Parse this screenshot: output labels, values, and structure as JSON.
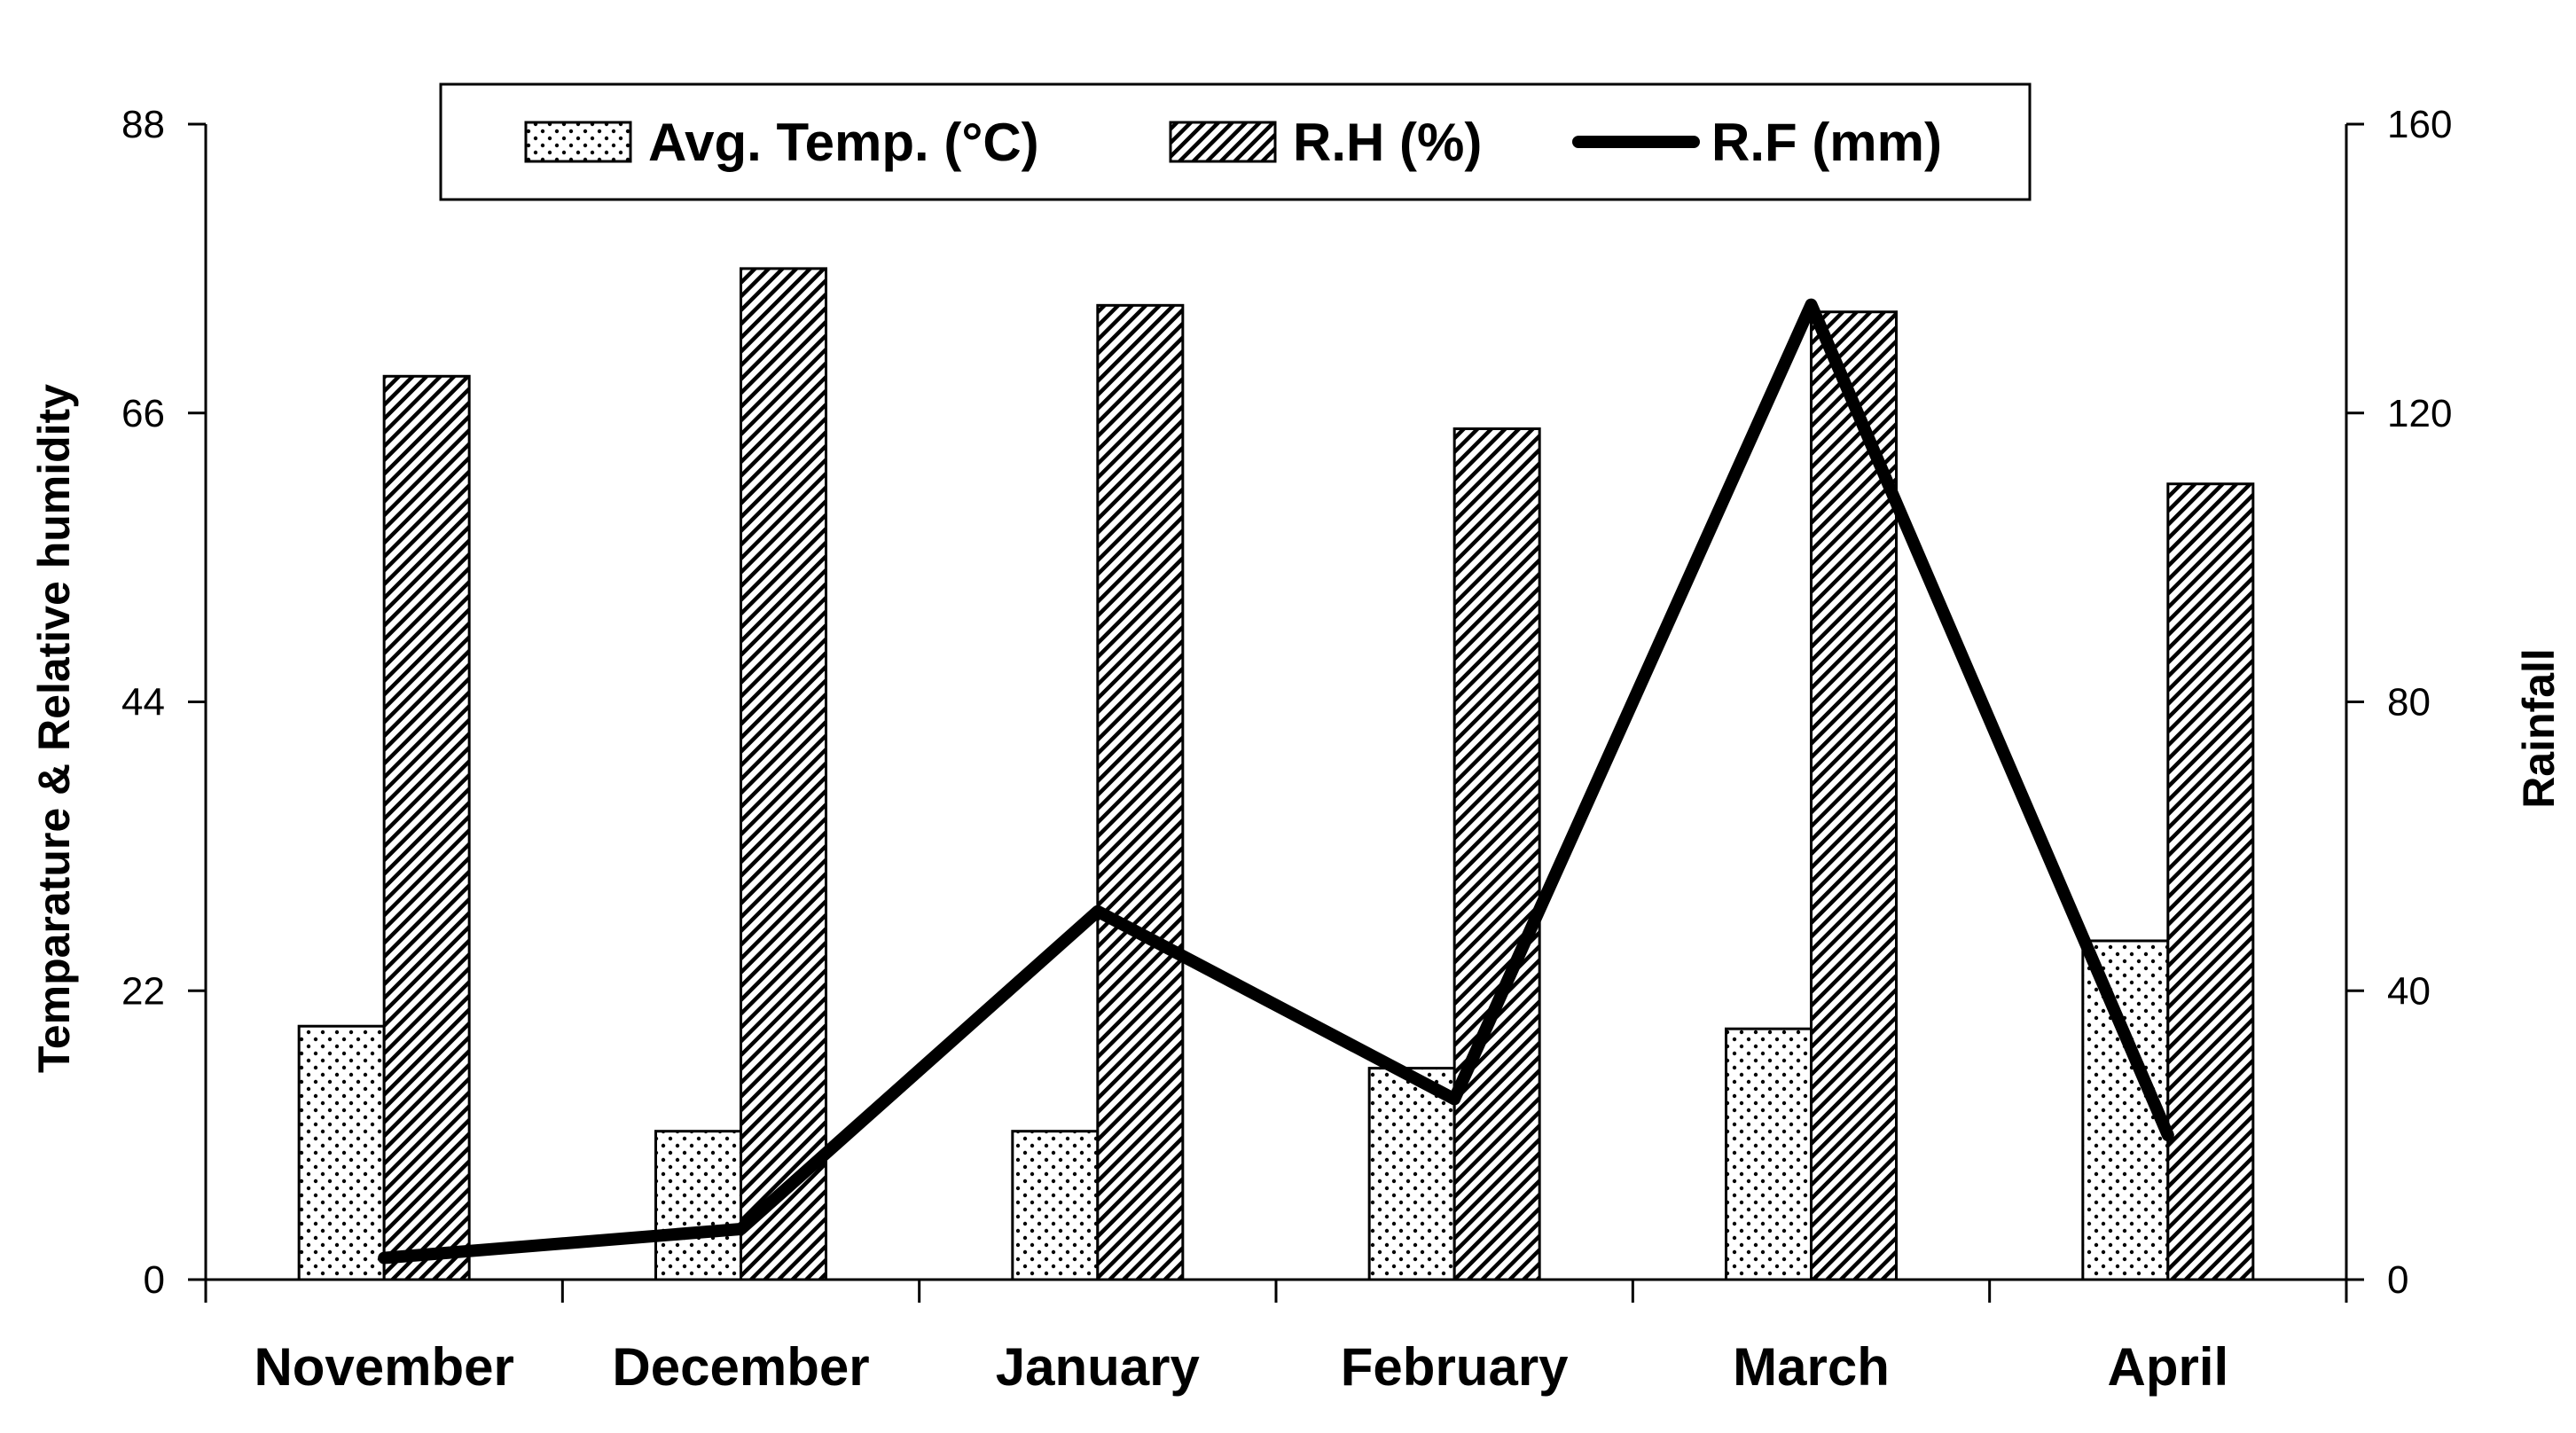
{
  "chart_data": {
    "type": "bar",
    "title": "",
    "categories": [
      "November",
      "December",
      "January",
      "February",
      "March",
      "April"
    ],
    "series": [
      {
        "name": "Avg. Temp. (°C)",
        "kind": "bar",
        "axis": "left",
        "pattern": "dots",
        "values": [
          19.3,
          11.3,
          11.3,
          16.1,
          19.1,
          25.8
        ]
      },
      {
        "name": "R.H (%)",
        "kind": "bar",
        "axis": "left",
        "pattern": "hatch",
        "values": [
          68.8,
          77.0,
          74.2,
          64.8,
          73.7,
          60.6
        ]
      },
      {
        "name": "R.F (mm)",
        "kind": "line",
        "axis": "right",
        "values": [
          3,
          7,
          51,
          25,
          135,
          20
        ]
      }
    ],
    "ylabel": "Temparature & Relative humidity",
    "ylabel_right": "Rainfall",
    "xlabel": "",
    "ylim": [
      0,
      88
    ],
    "yticks": [
      0,
      22,
      44,
      66,
      88
    ],
    "ylim_right": [
      0,
      160
    ],
    "yticks_right": [
      0,
      40,
      80,
      120,
      160
    ],
    "grid": false,
    "legend_position": "top-center"
  }
}
